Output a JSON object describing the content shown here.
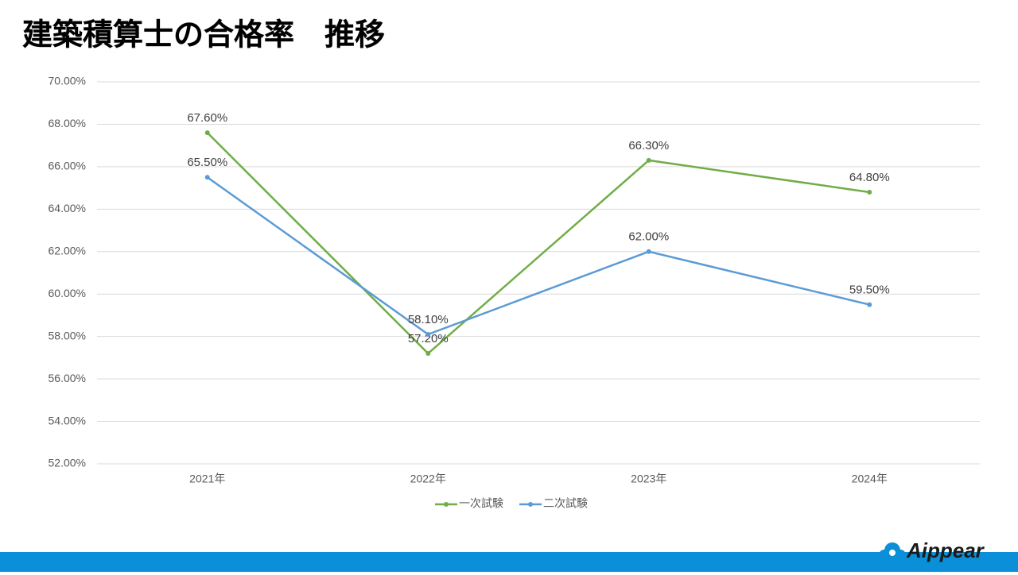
{
  "chart_data": {
    "type": "line",
    "title": "建築積算士の合格率　推移",
    "categories": [
      "2021年",
      "2022年",
      "2023年",
      "2024年"
    ],
    "series": [
      {
        "name": "一次試験",
        "color": "#70ad47",
        "values": [
          67.6,
          57.2,
          66.3,
          64.8
        ],
        "value_labels": [
          "67.60%",
          "57.20%",
          "66.30%",
          "64.80%"
        ]
      },
      {
        "name": "二次試験",
        "color": "#5b9bd5",
        "values": [
          65.5,
          58.1,
          62.0,
          59.5
        ],
        "value_labels": [
          "65.50%",
          "58.10%",
          "62.00%",
          "59.50%"
        ]
      }
    ],
    "ylim": [
      52,
      70
    ],
    "yticks": [
      {
        "value": 52,
        "label": "52.00%"
      },
      {
        "value": 54,
        "label": "54.00%"
      },
      {
        "value": 56,
        "label": "56.00%"
      },
      {
        "value": 58,
        "label": "58.00%"
      },
      {
        "value": 60,
        "label": "60.00%"
      },
      {
        "value": 62,
        "label": "62.00%"
      },
      {
        "value": 64,
        "label": "64.00%"
      },
      {
        "value": 66,
        "label": "66.00%"
      },
      {
        "value": 68,
        "label": "68.00%"
      },
      {
        "value": 70,
        "label": "70.00%"
      }
    ],
    "grid": true,
    "legend": "bottom",
    "logo": "Aippear"
  }
}
